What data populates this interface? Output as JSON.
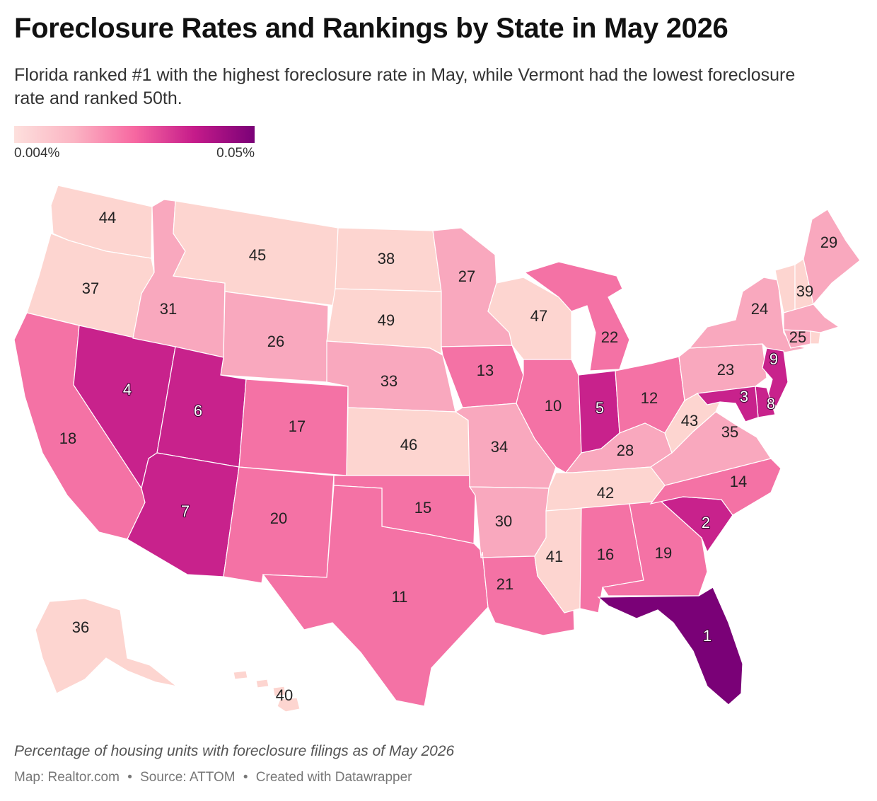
{
  "title": "Foreclosure Rates and Rankings by State in May 2026",
  "subtitle": "Florida ranked #1 with the highest foreclosure rate in May, while Vermont had the lowest foreclosure rate and ranked 50th.",
  "legend": {
    "min_label": "0.004%",
    "max_label": "0.05%",
    "colors": [
      "#fde0dd",
      "#fbb4c3",
      "#f768a1",
      "#c51b8a",
      "#7a0177"
    ]
  },
  "notes": "Percentage of housing units with foreclosure filings as of May 2026",
  "byline": {
    "map": "Map: Realtor.com",
    "source": "Source: ATTOM",
    "credit": "Created with Datawrapper",
    "separator": "•"
  },
  "palette": {
    "tier1": "#fdd5d0",
    "tier2": "#f9a8be",
    "tier3": "#f472a5",
    "tier4": "#c8228c",
    "tier5": "#7a0177"
  },
  "states": [
    {
      "code": "FL",
      "rank": "1",
      "tier": 5
    },
    {
      "code": "SC",
      "rank": "2",
      "tier": 4
    },
    {
      "code": "MD",
      "rank": "3",
      "tier": 4
    },
    {
      "code": "NV",
      "rank": "4",
      "tier": 4
    },
    {
      "code": "IN",
      "rank": "5",
      "tier": 4
    },
    {
      "code": "UT",
      "rank": "6",
      "tier": 4
    },
    {
      "code": "AZ",
      "rank": "7",
      "tier": 4
    },
    {
      "code": "DE",
      "rank": "8",
      "tier": 4
    },
    {
      "code": "NJ",
      "rank": "9",
      "tier": 4
    },
    {
      "code": "IL",
      "rank": "10",
      "tier": 3
    },
    {
      "code": "TX",
      "rank": "11",
      "tier": 3
    },
    {
      "code": "OH",
      "rank": "12",
      "tier": 3
    },
    {
      "code": "IA",
      "rank": "13",
      "tier": 3
    },
    {
      "code": "NC",
      "rank": "14",
      "tier": 3
    },
    {
      "code": "OK",
      "rank": "15",
      "tier": 3
    },
    {
      "code": "AL",
      "rank": "16",
      "tier": 3
    },
    {
      "code": "CO",
      "rank": "17",
      "tier": 3
    },
    {
      "code": "CA",
      "rank": "18",
      "tier": 3
    },
    {
      "code": "GA",
      "rank": "19",
      "tier": 3
    },
    {
      "code": "NM",
      "rank": "20",
      "tier": 3
    },
    {
      "code": "LA",
      "rank": "21",
      "tier": 3
    },
    {
      "code": "MI",
      "rank": "22",
      "tier": 3
    },
    {
      "code": "PA",
      "rank": "23",
      "tier": 2
    },
    {
      "code": "NY",
      "rank": "24",
      "tier": 2
    },
    {
      "code": "CT",
      "rank": "25",
      "tier": 2
    },
    {
      "code": "WY",
      "rank": "26",
      "tier": 2
    },
    {
      "code": "MN",
      "rank": "27",
      "tier": 2
    },
    {
      "code": "KY",
      "rank": "28",
      "tier": 2
    },
    {
      "code": "ME",
      "rank": "29",
      "tier": 2
    },
    {
      "code": "AR",
      "rank": "30",
      "tier": 2
    },
    {
      "code": "ID",
      "rank": "31",
      "tier": 2
    },
    {
      "code": "NE",
      "rank": "33",
      "tier": 2
    },
    {
      "code": "MO",
      "rank": "34",
      "tier": 2
    },
    {
      "code": "VA",
      "rank": "35",
      "tier": 2
    },
    {
      "code": "AK",
      "rank": "36",
      "tier": 1
    },
    {
      "code": "OR",
      "rank": "37",
      "tier": 1
    },
    {
      "code": "ND",
      "rank": "38",
      "tier": 1
    },
    {
      "code": "NH",
      "rank": "39",
      "tier": 1
    },
    {
      "code": "HI",
      "rank": "40",
      "tier": 1
    },
    {
      "code": "MS",
      "rank": "41",
      "tier": 1
    },
    {
      "code": "TN",
      "rank": "42",
      "tier": 1
    },
    {
      "code": "WV",
      "rank": "43",
      "tier": 1
    },
    {
      "code": "WA",
      "rank": "44",
      "tier": 1
    },
    {
      "code": "MT",
      "rank": "45",
      "tier": 1
    },
    {
      "code": "KS",
      "rank": "46",
      "tier": 1
    },
    {
      "code": "WI",
      "rank": "47",
      "tier": 1
    },
    {
      "code": "SD",
      "rank": "49",
      "tier": 1
    },
    {
      "code": "MA",
      "rank": "",
      "tier": 2
    },
    {
      "code": "VT",
      "rank": "",
      "tier": 1
    },
    {
      "code": "RI",
      "rank": "",
      "tier": 1
    }
  ]
}
